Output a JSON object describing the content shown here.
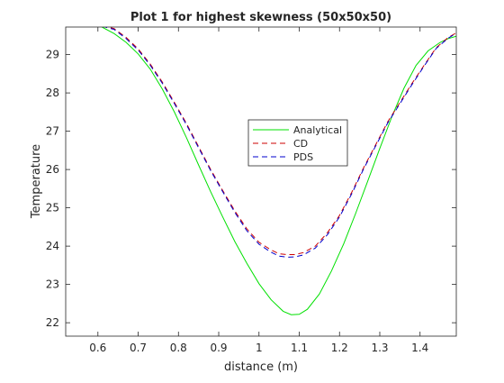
{
  "chart_data": {
    "type": "line",
    "title": "Plot 1 for highest skewness (50x50x50)",
    "xlabel": "distance (m)",
    "ylabel": "Temperature",
    "xlim": [
      0.52,
      1.49
    ],
    "ylim": [
      21.65,
      29.72
    ],
    "xticks": [
      0.6,
      0.7,
      0.8,
      0.9,
      1,
      1.1,
      1.2,
      1.3,
      1.4
    ],
    "xtick_labels": [
      "0.6",
      "0.7",
      "0.8",
      "0.9",
      "1",
      "1.1",
      "1.2",
      "1.3",
      "1.4"
    ],
    "yticks": [
      22,
      23,
      24,
      25,
      26,
      27,
      28,
      29
    ],
    "ytick_labels": [
      "22",
      "23",
      "24",
      "25",
      "26",
      "27",
      "28",
      "29"
    ],
    "grid": false,
    "legend_position": "center-right",
    "series": [
      {
        "name": "Analytical",
        "color": "#00e000",
        "style": "solid",
        "x": [
          0.61,
          0.64,
          0.67,
          0.7,
          0.73,
          0.76,
          0.79,
          0.82,
          0.85,
          0.88,
          0.91,
          0.94,
          0.97,
          1.0,
          1.03,
          1.06,
          1.08,
          1.1,
          1.12,
          1.15,
          1.18,
          1.21,
          1.24,
          1.27,
          1.3,
          1.33,
          1.36,
          1.39,
          1.42,
          1.45,
          1.47,
          1.49
        ],
        "y": [
          29.72,
          29.55,
          29.32,
          29.02,
          28.62,
          28.1,
          27.5,
          26.83,
          26.12,
          25.42,
          24.76,
          24.12,
          23.55,
          23.02,
          22.6,
          22.3,
          22.21,
          22.22,
          22.35,
          22.75,
          23.35,
          24.05,
          24.85,
          25.7,
          26.55,
          27.38,
          28.12,
          28.72,
          29.1,
          29.32,
          29.42,
          29.48
        ]
      },
      {
        "name": "CD",
        "color": "#cc0000",
        "style": "dashed",
        "x": [
          0.61,
          0.64,
          0.67,
          0.7,
          0.73,
          0.76,
          0.79,
          0.82,
          0.85,
          0.88,
          0.91,
          0.94,
          0.97,
          1.0,
          1.03,
          1.05,
          1.07,
          1.09,
          1.11,
          1.14,
          1.17,
          1.2,
          1.23,
          1.26,
          1.29,
          1.32,
          1.35,
          1.38,
          1.41,
          1.44,
          1.47,
          1.49
        ],
        "y": [
          29.76,
          29.68,
          29.45,
          29.15,
          28.75,
          28.28,
          27.75,
          27.2,
          26.6,
          26.0,
          25.45,
          24.92,
          24.45,
          24.1,
          23.9,
          23.8,
          23.78,
          23.78,
          23.83,
          24.0,
          24.35,
          24.8,
          25.4,
          26.05,
          26.65,
          27.25,
          27.75,
          28.25,
          28.72,
          29.18,
          29.45,
          29.57
        ]
      },
      {
        "name": "PDS",
        "color": "#0000cc",
        "style": "dashed",
        "x": [
          0.61,
          0.64,
          0.67,
          0.7,
          0.73,
          0.76,
          0.79,
          0.82,
          0.85,
          0.88,
          0.91,
          0.94,
          0.97,
          1.0,
          1.03,
          1.05,
          1.07,
          1.09,
          1.11,
          1.14,
          1.17,
          1.2,
          1.23,
          1.26,
          1.29,
          1.32,
          1.35,
          1.38,
          1.41,
          1.44,
          1.47,
          1.49
        ],
        "y": [
          29.74,
          29.66,
          29.42,
          29.12,
          28.72,
          28.25,
          27.72,
          27.17,
          26.57,
          25.97,
          25.42,
          24.88,
          24.4,
          24.05,
          23.84,
          23.74,
          23.71,
          23.72,
          23.77,
          23.95,
          24.3,
          24.76,
          25.36,
          26.02,
          26.62,
          27.22,
          27.72,
          28.22,
          28.7,
          29.16,
          29.43,
          29.56
        ]
      }
    ]
  }
}
